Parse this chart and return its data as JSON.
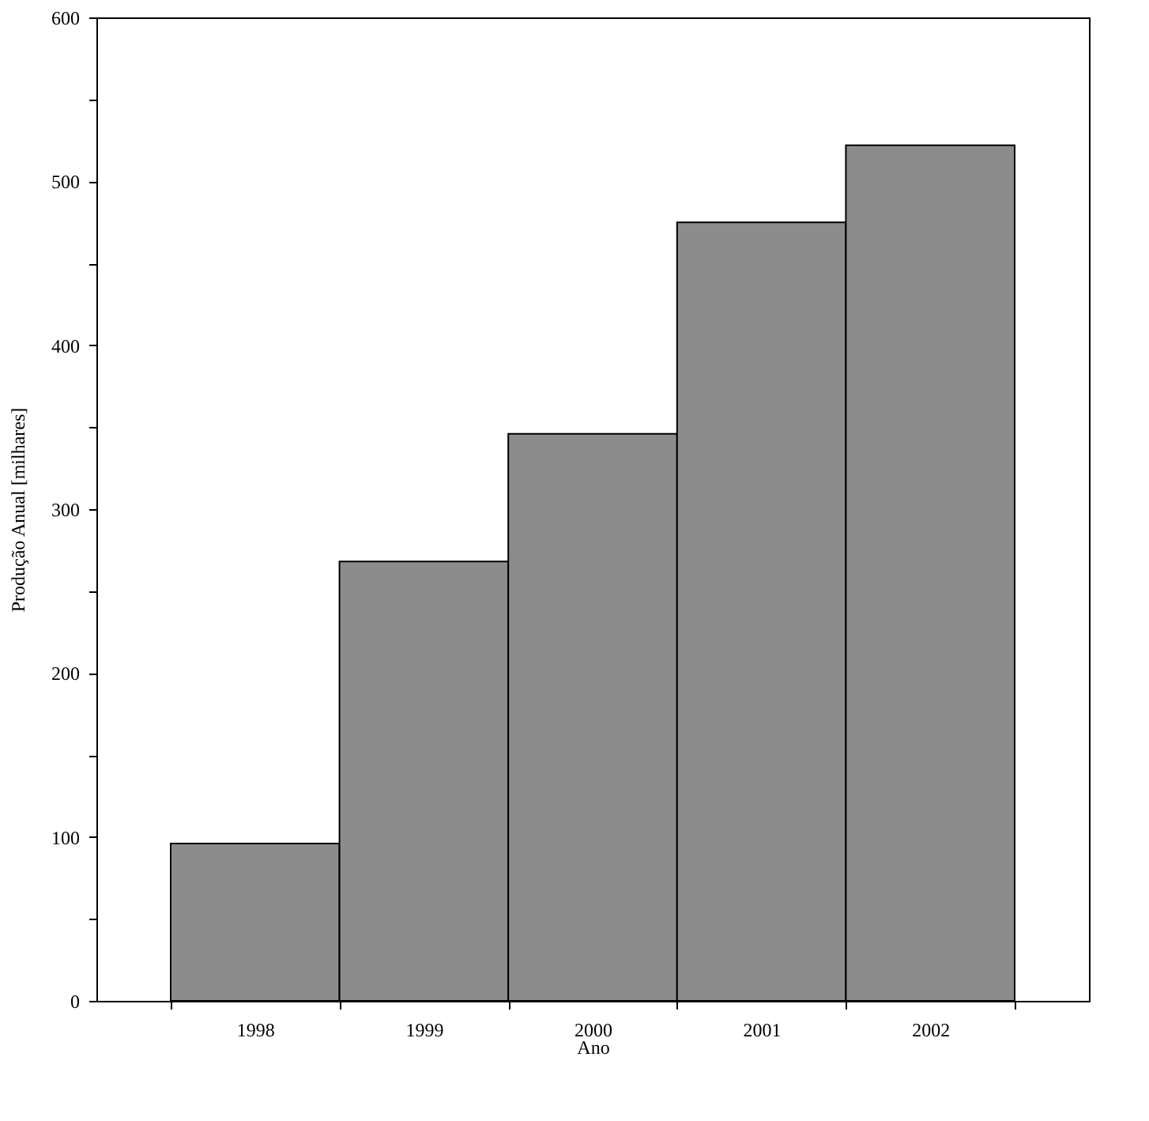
{
  "chart_data": {
    "type": "bar",
    "xlabel": "Ano",
    "ylabel": "Produção Anual [milhares]",
    "categories": [
      "1998",
      "1999",
      "2000",
      "2001",
      "2002"
    ],
    "values": [
      96,
      268,
      346,
      475,
      522
    ],
    "color": "#8c8c8c",
    "ylim": [
      0,
      600
    ],
    "yticks": [
      0,
      {
        "value": 50,
        "label": null
      },
      100,
      {
        "value": 150,
        "label": null
      },
      200,
      {
        "value": 250,
        "label": null
      },
      300,
      {
        "value": 350,
        "label": null
      },
      400,
      {
        "value": 450,
        "label": null
      },
      500,
      {
        "value": 550,
        "label": null
      },
      600
    ],
    "grid": false
  }
}
